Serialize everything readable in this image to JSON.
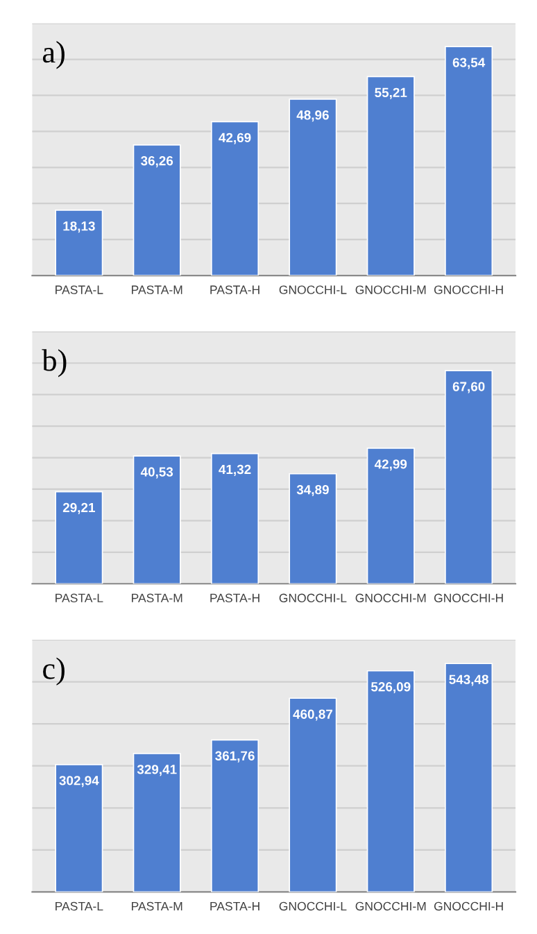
{
  "chart_data": [
    {
      "type": "bar",
      "title": "a)",
      "categories": [
        "PASTA-L",
        "PASTA-M",
        "PASTA-H",
        "GNOCCHI-L",
        "GNOCCHI-M",
        "GNOCCHI-H"
      ],
      "values": [
        18.13,
        36.26,
        42.69,
        48.96,
        55.21,
        63.54
      ],
      "value_labels": [
        "18,13",
        "36,26",
        "42,69",
        "48,96",
        "55,21",
        "63,54"
      ],
      "color": "#4f7fd0",
      "ylim": [
        0,
        70
      ],
      "yticks": [
        {
          "value": 0,
          "label": null
        },
        {
          "value": 10,
          "label": null
        },
        {
          "value": 20,
          "label": null
        },
        {
          "value": 30,
          "label": null
        },
        {
          "value": 40,
          "label": null
        },
        {
          "value": 50,
          "label": null
        },
        {
          "value": 60,
          "label": null
        },
        {
          "value": 70,
          "label": null
        }
      ],
      "grid": "y",
      "tick_labels": "x"
    },
    {
      "type": "bar",
      "title": "b)",
      "categories": [
        "PASTA-L",
        "PASTA-M",
        "PASTA-H",
        "GNOCCHI-L",
        "GNOCCHI-M",
        "GNOCCHI-H"
      ],
      "values": [
        29.21,
        40.53,
        41.32,
        34.89,
        42.99,
        67.6
      ],
      "value_labels": [
        "29,21",
        "40,53",
        "41,32",
        "34,89",
        "42,99",
        "67,60"
      ],
      "color": "#4f7fd0",
      "ylim": [
        0,
        80
      ],
      "yticks": [
        {
          "value": 0,
          "label": null
        },
        {
          "value": 10,
          "label": null
        },
        {
          "value": 20,
          "label": null
        },
        {
          "value": 30,
          "label": null
        },
        {
          "value": 40,
          "label": null
        },
        {
          "value": 50,
          "label": null
        },
        {
          "value": 60,
          "label": null
        },
        {
          "value": 70,
          "label": null
        },
        {
          "value": 80,
          "label": null
        }
      ],
      "grid": "y",
      "tick_labels": "x"
    },
    {
      "type": "bar",
      "title": "c)",
      "categories": [
        "PASTA-L",
        "PASTA-M",
        "PASTA-H",
        "GNOCCHI-L",
        "GNOCCHI-M",
        "GNOCCHI-H"
      ],
      "values": [
        302.94,
        329.41,
        361.76,
        460.87,
        526.09,
        543.48
      ],
      "value_labels": [
        "302,94",
        "329,41",
        "361,76",
        "460,87",
        "526,09",
        "543,48"
      ],
      "color": "#4f7fd0",
      "ylim": [
        0,
        600
      ],
      "yticks": [
        {
          "value": 0,
          "label": null
        },
        {
          "value": 100,
          "label": null
        },
        {
          "value": 200,
          "label": null
        },
        {
          "value": 300,
          "label": null
        },
        {
          "value": 400,
          "label": null
        },
        {
          "value": 500,
          "label": null
        },
        {
          "value": 600,
          "label": null
        }
      ],
      "grid": "y",
      "tick_labels": "x"
    }
  ]
}
